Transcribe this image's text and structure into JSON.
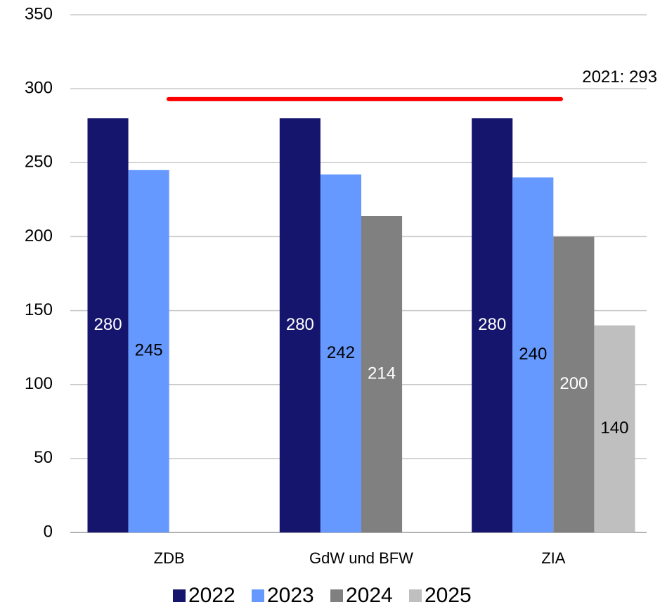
{
  "chart_data": {
    "type": "bar",
    "categories": [
      "ZDB",
      "GdW und BFW",
      "ZIA"
    ],
    "series": [
      {
        "name": "2022",
        "color": "#15156e",
        "label_color": "#ffffff",
        "values": [
          280,
          280,
          280
        ]
      },
      {
        "name": "2023",
        "color": "#6699ff",
        "label_color": "#000000",
        "values": [
          245,
          242,
          240
        ]
      },
      {
        "name": "2024",
        "color": "#808080",
        "label_color": "#ffffff",
        "values": [
          null,
          214,
          200
        ]
      },
      {
        "name": "2025",
        "color": "#bfbfbf",
        "label_color": "#000000",
        "values": [
          null,
          null,
          140
        ]
      }
    ],
    "ylim": [
      0,
      350
    ],
    "yticks": [
      0,
      50,
      100,
      150,
      200,
      250,
      300,
      350
    ],
    "grid": true,
    "legend": "bottom",
    "annotation": {
      "label": "2021: 293",
      "value": 293,
      "color": "#ff0000"
    }
  }
}
